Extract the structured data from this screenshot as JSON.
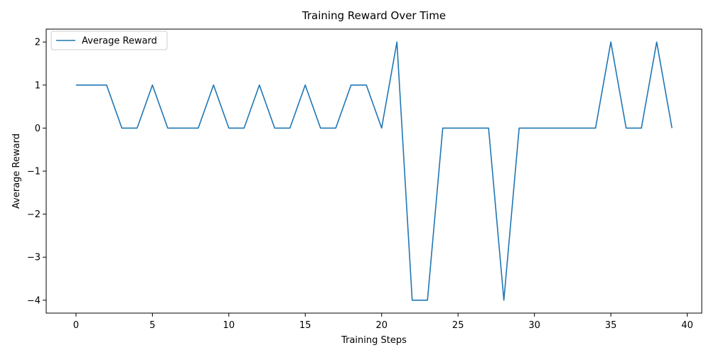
{
  "chart_data": {
    "type": "line",
    "title": "Training Reward Over Time",
    "xlabel": "Training Steps",
    "ylabel": "Average Reward",
    "xlim": [
      -1.95,
      40.95
    ],
    "ylim": [
      -4.3,
      2.3
    ],
    "xticks": [
      0,
      5,
      10,
      15,
      20,
      25,
      30,
      35,
      40
    ],
    "yticks": [
      -4,
      -3,
      -2,
      -1,
      0,
      1,
      2
    ],
    "xtick_labels": [
      "0",
      "5",
      "10",
      "15",
      "20",
      "25",
      "30",
      "35",
      "40"
    ],
    "ytick_labels": [
      "−4",
      "−3",
      "−2",
      "−1",
      "0",
      "1",
      "2"
    ],
    "grid": false,
    "legend": {
      "position": "top-left",
      "entries": [
        "Average Reward"
      ]
    },
    "series": [
      {
        "name": "Average Reward",
        "color": "#1f77b4",
        "x": [
          0,
          1,
          2,
          3,
          4,
          5,
          6,
          7,
          8,
          9,
          10,
          11,
          12,
          13,
          14,
          15,
          16,
          17,
          18,
          19,
          20,
          21,
          22,
          23,
          24,
          25,
          26,
          27,
          28,
          29,
          30,
          31,
          32,
          33,
          34,
          35,
          36,
          37,
          38,
          39
        ],
        "y": [
          1,
          1,
          1,
          0,
          0,
          1,
          0,
          0,
          0,
          1,
          0,
          0,
          1,
          0,
          0,
          1,
          0,
          0,
          1,
          1,
          0,
          2,
          -4,
          -4,
          0,
          0,
          0,
          0,
          -4,
          0,
          0,
          0,
          0,
          0,
          0,
          2,
          0,
          0,
          2,
          0
        ]
      }
    ]
  }
}
